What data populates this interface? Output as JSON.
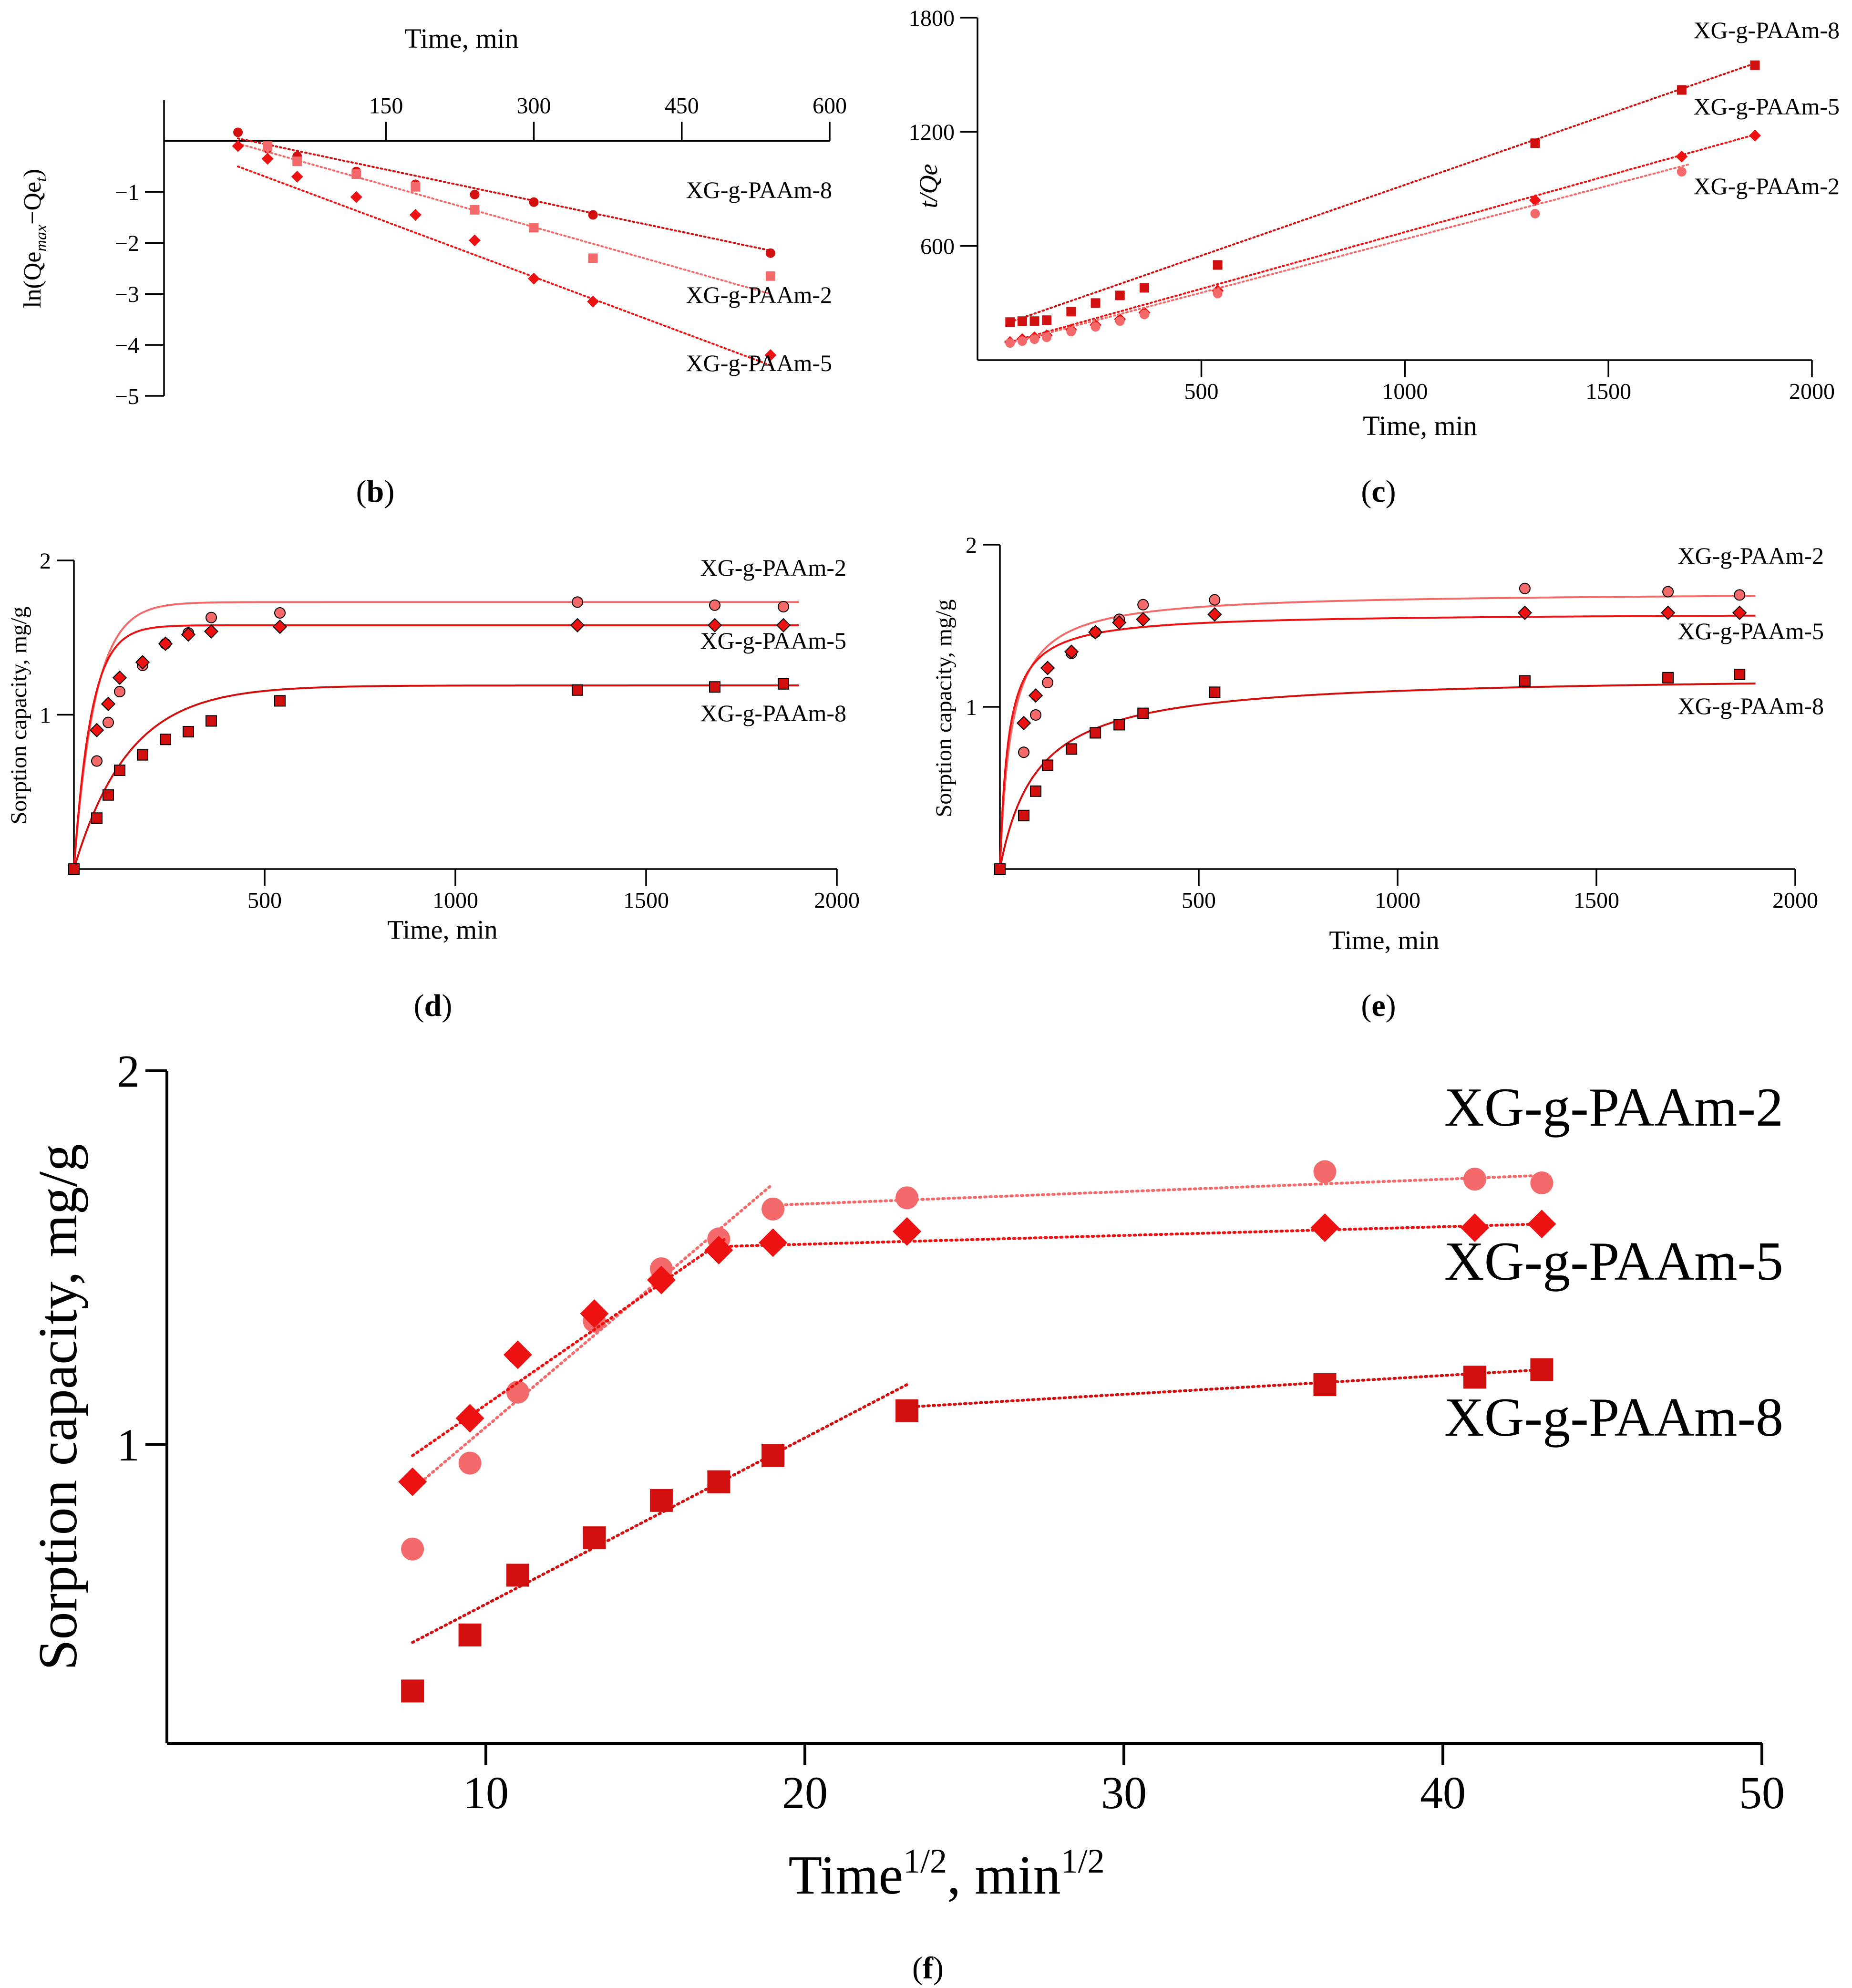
{
  "colors": {
    "pam2": "#f46a6a",
    "pam5": "#ee1111",
    "pam8": "#d20f0f",
    "axis": "#000000"
  },
  "chart_data": [
    {
      "id": "b",
      "panel_label": "b",
      "type": "scatter",
      "xlabel": "Time, min",
      "ylabel": "ln(Qe",
      "ylabel_sub": "max",
      "ylabel_mid": "−Qe",
      "ylabel_sub2": "t",
      "ylabel_end": ")",
      "xaxis_position": "top",
      "xlim": [
        -75,
        600
      ],
      "ylim": [
        -5,
        0.8
      ],
      "xticks": [
        150,
        300,
        450,
        600
      ],
      "yticks": [
        -1,
        -2,
        -3,
        -4,
        -5
      ],
      "series": [
        {
          "name": "XG-g-PAAm-8",
          "key": "pam8",
          "marker": "circle",
          "fit": "dotted-line",
          "x": [
            0,
            30,
            60,
            120,
            180,
            240,
            300,
            360,
            540
          ],
          "y": [
            0.17,
            -0.15,
            -0.3,
            -0.6,
            -0.85,
            -1.05,
            -1.2,
            -1.45,
            -2.2
          ],
          "fit_x": [
            0,
            540
          ],
          "fit_y": [
            0.05,
            -2.15
          ]
        },
        {
          "name": "XG-g-PAAm-2",
          "key": "pam2",
          "marker": "square",
          "fit": "dotted-line",
          "x": [
            30,
            60,
            120,
            180,
            240,
            300,
            360,
            540
          ],
          "y": [
            -0.1,
            -0.4,
            -0.65,
            -0.9,
            -1.35,
            -1.7,
            -2.3,
            -2.65
          ],
          "fit_x": [
            0,
            540
          ],
          "fit_y": [
            -0.05,
            -3.0
          ]
        },
        {
          "name": "XG-g-PAAm-5",
          "key": "pam5",
          "marker": "diamond",
          "fit": "dotted-line",
          "x": [
            0,
            30,
            60,
            120,
            180,
            240,
            300,
            360,
            540
          ],
          "y": [
            -0.1,
            -0.35,
            -0.7,
            -1.1,
            -1.45,
            -1.95,
            -2.7,
            -3.15,
            -4.2
          ],
          "fit_x": [
            0,
            540
          ],
          "fit_y": [
            -0.5,
            -4.4
          ]
        }
      ]
    },
    {
      "id": "c",
      "panel_label": "c",
      "type": "scatter",
      "xlabel": "Time, min",
      "ylabel": "t/Qe",
      "xlim": [
        -50,
        2000
      ],
      "ylim": [
        0,
        1800
      ],
      "xticks": [
        500,
        1000,
        1500,
        2000
      ],
      "yticks": [
        600,
        1200,
        1800
      ],
      "series": [
        {
          "name": "XG-g-PAAm-8",
          "key": "pam8",
          "marker": "square",
          "fit": "dotted-line",
          "x": [
            30,
            60,
            90,
            120,
            180,
            240,
            300,
            360,
            540,
            1320,
            1680,
            1860
          ],
          "y": [
            200,
            205,
            205,
            210,
            255,
            300,
            340,
            380,
            500,
            1140,
            1420,
            1550
          ],
          "fit_x": [
            30,
            1860
          ],
          "fit_y": [
            200,
            1560
          ]
        },
        {
          "name": "XG-g-PAAm-5",
          "key": "pam5",
          "marker": "diamond",
          "fit": "dotted-line",
          "x": [
            30,
            60,
            90,
            120,
            180,
            240,
            300,
            360,
            540,
            1320,
            1680,
            1860
          ],
          "y": [
            95,
            110,
            120,
            130,
            160,
            185,
            215,
            250,
            365,
            840,
            1070,
            1180
          ],
          "fit_x": [
            30,
            1860
          ],
          "fit_y": [
            95,
            1185
          ]
        },
        {
          "name": "XG-g-PAAm-2",
          "key": "pam2",
          "marker": "circle",
          "fit": "dotted-line",
          "x": [
            30,
            60,
            90,
            120,
            180,
            240,
            300,
            360,
            540,
            1320,
            1680
          ],
          "y": [
            90,
            100,
            110,
            120,
            150,
            175,
            205,
            240,
            350,
            770,
            990
          ],
          "fit_x": [
            30,
            1700
          ],
          "fit_y": [
            90,
            1030
          ]
        }
      ]
    },
    {
      "id": "d",
      "panel_label": "d",
      "type": "scatter",
      "xlabel": "Time, min",
      "ylabel": "Sorption capacity, mg/g",
      "xlim": [
        0,
        2000
      ],
      "ylim": [
        0,
        2
      ],
      "xticks": [
        500,
        1000,
        1500,
        2000
      ],
      "yticks": [
        1,
        2
      ],
      "series": [
        {
          "name": "XG-g-PAAm-2",
          "key": "pam2",
          "marker": "circle",
          "fit": "pfo",
          "qe": 1.73,
          "k": 0.018,
          "x": [
            0,
            60,
            90,
            120,
            180,
            240,
            300,
            360,
            540,
            1320,
            1680,
            1860
          ],
          "y": [
            0,
            0.7,
            0.95,
            1.15,
            1.32,
            1.46,
            1.53,
            1.63,
            1.66,
            1.73,
            1.71,
            1.7
          ]
        },
        {
          "name": "XG-g-PAAm-5",
          "key": "pam5",
          "marker": "diamond",
          "fit": "pfo",
          "qe": 1.58,
          "k": 0.022,
          "x": [
            60,
            90,
            120,
            180,
            240,
            300,
            360,
            540,
            1320,
            1680,
            1860
          ],
          "y": [
            0.9,
            1.07,
            1.24,
            1.34,
            1.46,
            1.52,
            1.54,
            1.57,
            1.58,
            1.58,
            1.58
          ]
        },
        {
          "name": "XG-g-PAAm-8",
          "key": "pam8",
          "marker": "square",
          "fit": "pfo",
          "qe": 1.19,
          "k": 0.007,
          "x": [
            0,
            60,
            90,
            120,
            180,
            240,
            300,
            360,
            540,
            1320,
            1680,
            1860
          ],
          "y": [
            0,
            0.33,
            0.48,
            0.64,
            0.74,
            0.84,
            0.89,
            0.96,
            1.09,
            1.16,
            1.18,
            1.2
          ]
        }
      ]
    },
    {
      "id": "e",
      "panel_label": "e",
      "type": "scatter",
      "xlabel": "Time, min",
      "ylabel": "Sorption capacity, mg/g",
      "xlim": [
        0,
        2000
      ],
      "ylim": [
        0,
        2
      ],
      "xticks": [
        500,
        1000,
        1500,
        2000
      ],
      "yticks": [
        1,
        2
      ],
      "series": [
        {
          "name": "XG-g-PAAm-2",
          "key": "pam2",
          "marker": "circle",
          "fit": "pso",
          "qe": 1.71,
          "k": 0.02,
          "x": [
            0,
            60,
            90,
            120,
            180,
            240,
            300,
            360,
            540,
            1320,
            1680,
            1860
          ],
          "y": [
            0,
            0.72,
            0.95,
            1.15,
            1.33,
            1.46,
            1.54,
            1.63,
            1.66,
            1.73,
            1.71,
            1.69
          ]
        },
        {
          "name": "XG-g-PAAm-5",
          "key": "pam5",
          "marker": "diamond",
          "fit": "pso",
          "qe": 1.58,
          "k": 0.03,
          "x": [
            60,
            90,
            120,
            180,
            240,
            300,
            360,
            540,
            1320,
            1680,
            1860
          ],
          "y": [
            0.9,
            1.07,
            1.24,
            1.34,
            1.46,
            1.52,
            1.54,
            1.57,
            1.58,
            1.58,
            1.58
          ]
        },
        {
          "name": "XG-g-PAAm-8",
          "key": "pam8",
          "marker": "square",
          "fit": "pso",
          "qe": 1.2,
          "k": 0.009,
          "x": [
            0,
            60,
            90,
            120,
            180,
            240,
            300,
            360,
            540,
            1320,
            1680,
            1860
          ],
          "y": [
            0,
            0.33,
            0.48,
            0.64,
            0.74,
            0.84,
            0.89,
            0.96,
            1.09,
            1.16,
            1.18,
            1.2
          ]
        }
      ]
    },
    {
      "id": "f",
      "panel_label": "f",
      "type": "scatter",
      "xlabel": "Time",
      "xlabel_sup": "1/2",
      "xlabel_mid": ", min",
      "xlabel_sup2": "1/2",
      "ylabel": "Sorption capacity, mg/g",
      "xlim": [
        0,
        50
      ],
      "ylim": [
        0.2,
        2
      ],
      "xticks": [
        10,
        20,
        30,
        40,
        50
      ],
      "yticks": [
        1,
        2
      ],
      "series": [
        {
          "name": "XG-g-PAAm-2",
          "key": "pam2",
          "marker": "circle",
          "x": [
            7.7,
            9.5,
            11.0,
            13.4,
            15.5,
            17.3,
            19.0,
            23.2,
            36.3,
            41.0,
            43.1
          ],
          "y": [
            0.72,
            0.95,
            1.14,
            1.33,
            1.47,
            1.55,
            1.63,
            1.66,
            1.73,
            1.71,
            1.7
          ],
          "fits": [
            {
              "x": [
                7.7,
                18.9
              ],
              "y": [
                0.88,
                1.69
              ]
            },
            {
              "x": [
                18.9,
                43.1
              ],
              "y": [
                1.64,
                1.72
              ]
            }
          ]
        },
        {
          "name": "XG-g-PAAm-5",
          "key": "pam5",
          "marker": "diamond",
          "x": [
            7.7,
            9.5,
            11.0,
            13.4,
            15.5,
            17.3,
            19.0,
            23.2,
            36.3,
            41.0,
            43.1
          ],
          "y": [
            0.9,
            1.07,
            1.24,
            1.35,
            1.44,
            1.52,
            1.54,
            1.57,
            1.58,
            1.58,
            1.59
          ],
          "fits": [
            {
              "x": [
                7.7,
                17.5
              ],
              "y": [
                0.97,
                1.55
              ]
            },
            {
              "x": [
                17.5,
                43.1
              ],
              "y": [
                1.53,
                1.59
              ]
            }
          ]
        },
        {
          "name": "XG-g-PAAm-8",
          "key": "pam8",
          "marker": "square",
          "x": [
            7.7,
            9.5,
            11.0,
            13.4,
            15.5,
            17.3,
            19.0,
            23.2,
            36.3,
            41.0,
            43.1
          ],
          "y": [
            0.34,
            0.49,
            0.65,
            0.75,
            0.85,
            0.9,
            0.97,
            1.09,
            1.16,
            1.18,
            1.2
          ],
          "fits": [
            {
              "x": [
                7.7,
                23.2
              ],
              "y": [
                0.47,
                1.16
              ]
            },
            {
              "x": [
                23.2,
                43.1
              ],
              "y": [
                1.1,
                1.2
              ]
            }
          ]
        }
      ]
    }
  ]
}
